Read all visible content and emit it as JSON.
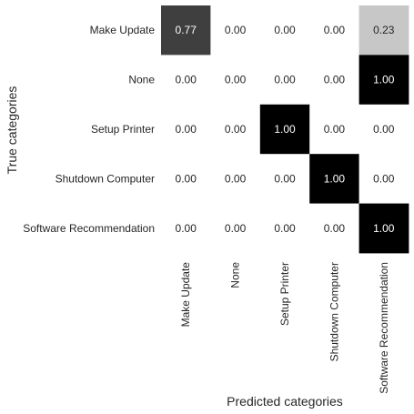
{
  "chart_data": {
    "type": "heatmap",
    "title": "",
    "xlabel": "Predicted categories",
    "ylabel": "True categories",
    "x_categories": [
      "Make Update",
      "None",
      "Setup Printer",
      "Shutdown Computer",
      "Software Recommendation"
    ],
    "y_categories": [
      "Make Update",
      "None",
      "Setup Printer",
      "Shutdown Computer",
      "Software Recommendation"
    ],
    "values": [
      [
        0.77,
        0.0,
        0.0,
        0.0,
        0.23
      ],
      [
        0.0,
        0.0,
        0.0,
        0.0,
        1.0
      ],
      [
        0.0,
        0.0,
        1.0,
        0.0,
        0.0
      ],
      [
        0.0,
        0.0,
        0.0,
        1.0,
        0.0
      ],
      [
        0.0,
        0.0,
        0.0,
        0.0,
        1.0
      ]
    ],
    "value_format": "0.00",
    "colormap": "greys",
    "vmin": 0,
    "vmax": 1,
    "colorbar": false,
    "grid": false,
    "colors": {
      "low": "#ffffff",
      "high": "#000000",
      "text_on_light": "#262626",
      "text_on_dark": "#ffffff"
    }
  }
}
